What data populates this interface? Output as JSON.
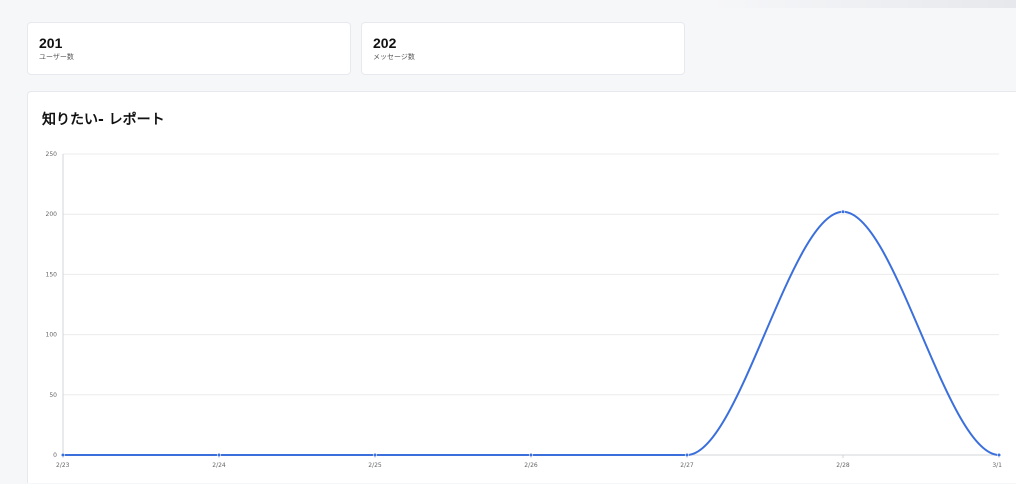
{
  "stats": {
    "users": {
      "value": "201",
      "label": "ユーザー数"
    },
    "messages": {
      "value": "202",
      "label": "メッセージ数"
    }
  },
  "report": {
    "title": "知りたい- レポート"
  },
  "colors": {
    "line": "#3b6fdc",
    "grid": "#ececec",
    "axis": "#d0d4da"
  },
  "chart_data": {
    "type": "line",
    "title": "",
    "xlabel": "",
    "ylabel": "",
    "categories": [
      "2/23",
      "2/24",
      "2/25",
      "2/26",
      "2/27",
      "2/28",
      "3/1"
    ],
    "series": [
      {
        "values": [
          0,
          0,
          0,
          0,
          0,
          202,
          0
        ]
      }
    ],
    "ylim": [
      0,
      250
    ],
    "yticks": [
      "0",
      "50",
      "100",
      "150",
      "200",
      "250"
    ],
    "grid": true,
    "smooth": true
  }
}
